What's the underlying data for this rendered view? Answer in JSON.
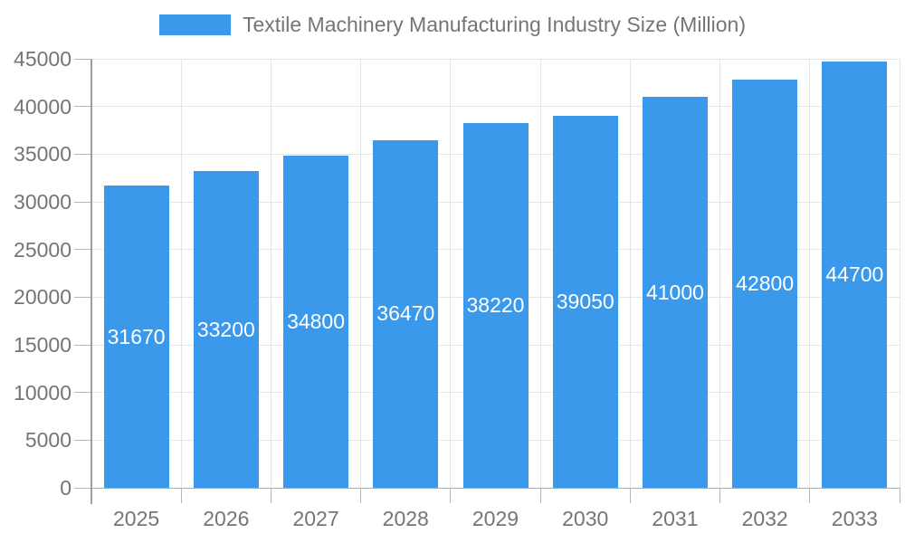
{
  "chart_data": {
    "type": "bar",
    "title": "Textile Machinery Manufacturing Industry Size (Million)",
    "legend": {
      "position": "top",
      "entries": [
        "Textile Machinery Manufacturing Industry Size (Million)"
      ]
    },
    "categories": [
      "2025",
      "2026",
      "2027",
      "2028",
      "2029",
      "2030",
      "2031",
      "2032",
      "2033"
    ],
    "series": [
      {
        "name": "Textile Machinery Manufacturing Industry Size (Million)",
        "values": [
          31670,
          33200,
          34800,
          36470,
          38220,
          39050,
          41000,
          42800,
          44700
        ]
      }
    ],
    "bar_labels": [
      "31670",
      "33200",
      "34800",
      "36470",
      "38220",
      "39050",
      "41000",
      "42800",
      "44700"
    ],
    "xlabel": "",
    "ylabel": "",
    "ylim": [
      0,
      45000
    ],
    "ytick_step": 5000,
    "ytick_labels": [
      "0",
      "5000",
      "10000",
      "15000",
      "20000",
      "25000",
      "30000",
      "35000",
      "40000",
      "45000"
    ],
    "grid": true,
    "colors": {
      "bar": "#3B99EC",
      "axis_text": "#757575",
      "bar_label_text": "#FFFFFF",
      "gridline": "#E6E6E6",
      "axis_line": "#9E9E9E",
      "baseline": "#ABABAB",
      "tick": "#B6B6B6",
      "background": "#FFFFFF"
    }
  }
}
